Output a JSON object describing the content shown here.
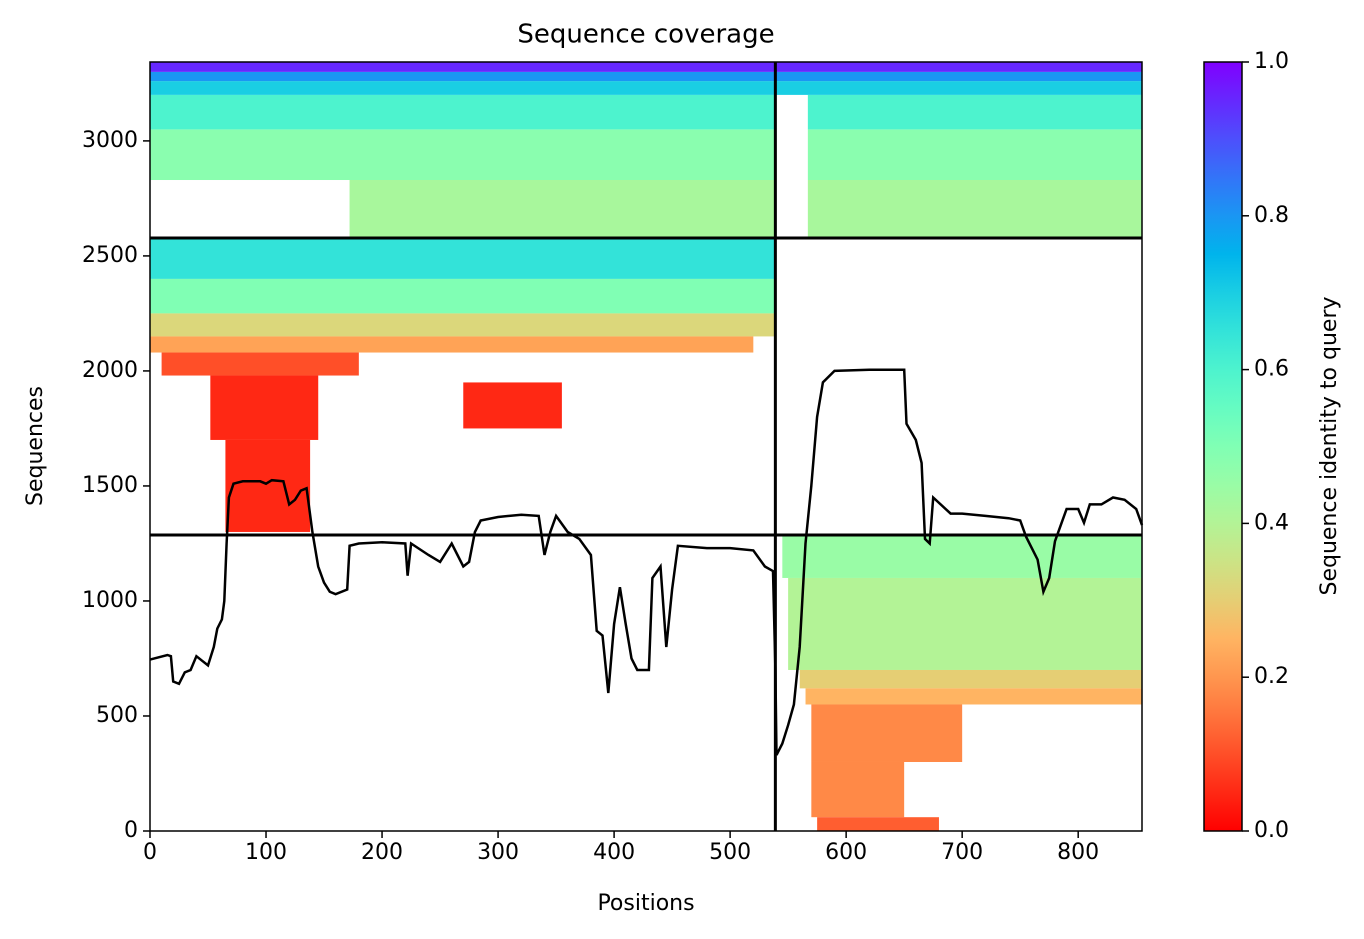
{
  "chart_data": {
    "type": "coverage",
    "title": "Sequence coverage",
    "xlabel": "Positions",
    "ylabel": "Sequences",
    "colorbar_label": "Sequence identity to query",
    "xlim": [
      0,
      855
    ],
    "ylim": [
      0,
      3343
    ],
    "xticks": [
      0,
      100,
      200,
      300,
      400,
      500,
      600,
      700,
      800
    ],
    "yticks": [
      0,
      500,
      1000,
      1500,
      2000,
      2500,
      3000
    ],
    "clim": [
      0,
      1
    ],
    "cticks": [
      {
        "value": 0,
        "label": "0.0"
      },
      {
        "value": 0.2,
        "label": "0.2"
      },
      {
        "value": 0.4,
        "label": "0.4"
      },
      {
        "value": 0.6,
        "label": "0.6"
      },
      {
        "value": 0.8,
        "label": "0.8"
      },
      {
        "value": 1,
        "label": "1.0"
      }
    ],
    "colormap": "rainbow_r",
    "blocks": [
      {
        "x": [
          172,
          539
        ],
        "y": [
          2580,
          2830
        ],
        "identity": 0.42
      },
      {
        "x": [
          0,
          539
        ],
        "y": [
          2830,
          3050
        ],
        "identity": 0.48
      },
      {
        "x": [
          0,
          539
        ],
        "y": [
          3050,
          3200
        ],
        "identity": 0.6
      },
      {
        "x": [
          0,
          539
        ],
        "y": [
          3200,
          3260
        ],
        "identity": 0.7
      },
      {
        "x": [
          0,
          539
        ],
        "y": [
          3260,
          3300
        ],
        "identity": 0.8
      },
      {
        "x": [
          0,
          539
        ],
        "y": [
          3300,
          3343
        ],
        "identity": 0.95
      },
      {
        "x": [
          567,
          855
        ],
        "y": [
          2580,
          2830
        ],
        "identity": 0.42
      },
      {
        "x": [
          567,
          855
        ],
        "y": [
          2830,
          3050
        ],
        "identity": 0.48
      },
      {
        "x": [
          567,
          855
        ],
        "y": [
          3050,
          3200
        ],
        "identity": 0.6
      },
      {
        "x": [
          539,
          855
        ],
        "y": [
          3200,
          3260
        ],
        "identity": 0.7
      },
      {
        "x": [
          539,
          855
        ],
        "y": [
          3260,
          3300
        ],
        "identity": 0.8
      },
      {
        "x": [
          539,
          855
        ],
        "y": [
          3300,
          3343
        ],
        "identity": 0.95
      },
      {
        "x": [
          0,
          539
        ],
        "y": [
          2400,
          2575
        ],
        "identity": 0.65
      },
      {
        "x": [
          0,
          539
        ],
        "y": [
          2250,
          2400
        ],
        "identity": 0.5
      },
      {
        "x": [
          0,
          539
        ],
        "y": [
          2150,
          2250
        ],
        "identity": 0.32
      },
      {
        "x": [
          0,
          520
        ],
        "y": [
          2080,
          2150
        ],
        "identity": 0.22
      },
      {
        "x": [
          10,
          180
        ],
        "y": [
          1980,
          2080
        ],
        "identity": 0.1
      },
      {
        "x": [
          52,
          145
        ],
        "y": [
          1700,
          1980
        ],
        "identity": 0.05
      },
      {
        "x": [
          65,
          138
        ],
        "y": [
          1300,
          1700
        ],
        "identity": 0.05
      },
      {
        "x": [
          270,
          355
        ],
        "y": [
          1750,
          1950
        ],
        "identity": 0.05
      },
      {
        "x": [
          545,
          855
        ],
        "y": [
          1100,
          1285
        ],
        "identity": 0.45
      },
      {
        "x": [
          550,
          855
        ],
        "y": [
          700,
          1100
        ],
        "identity": 0.4
      },
      {
        "x": [
          560,
          855
        ],
        "y": [
          620,
          700
        ],
        "identity": 0.3
      },
      {
        "x": [
          565,
          855
        ],
        "y": [
          550,
          620
        ],
        "identity": 0.25
      },
      {
        "x": [
          570,
          700
        ],
        "y": [
          300,
          550
        ],
        "identity": 0.18
      },
      {
        "x": [
          570,
          650
        ],
        "y": [
          60,
          300
        ],
        "identity": 0.18
      },
      {
        "x": [
          575,
          680
        ],
        "y": [
          0,
          60
        ],
        "identity": 0.12
      }
    ],
    "hlines": [
      1287,
      2578
    ],
    "vlines": [
      539
    ],
    "coverage": {
      "color": "#000000",
      "x": [
        0,
        15,
        18,
        20,
        25,
        30,
        35,
        40,
        45,
        50,
        55,
        58,
        62,
        64,
        66,
        68,
        72,
        80,
        95,
        100,
        105,
        115,
        120,
        125,
        130,
        135,
        140,
        145,
        150,
        155,
        160,
        170,
        172,
        180,
        200,
        220,
        222,
        225,
        240,
        250,
        260,
        265,
        270,
        275,
        280,
        285,
        300,
        320,
        335,
        340,
        345,
        350,
        360,
        370,
        380,
        385,
        390,
        393,
        395,
        400,
        405,
        410,
        415,
        420,
        430,
        433,
        440,
        445,
        450,
        455,
        480,
        500,
        520,
        530,
        537,
        539,
        540,
        545,
        550,
        555,
        560,
        565,
        570,
        575,
        580,
        590,
        620,
        650,
        652,
        660,
        665,
        668,
        672,
        675,
        690,
        700,
        720,
        740,
        750,
        755,
        765,
        770,
        775,
        780,
        785,
        790,
        800,
        805,
        810,
        820,
        830,
        840,
        850,
        855
      ],
      "y": [
        745,
        765,
        760,
        650,
        640,
        690,
        700,
        760,
        740,
        720,
        800,
        880,
        920,
        1000,
        1250,
        1450,
        1510,
        1520,
        1520,
        1510,
        1525,
        1520,
        1420,
        1440,
        1480,
        1490,
        1300,
        1150,
        1080,
        1040,
        1030,
        1050,
        1240,
        1250,
        1255,
        1250,
        1110,
        1250,
        1200,
        1170,
        1250,
        1200,
        1150,
        1170,
        1300,
        1350,
        1365,
        1375,
        1370,
        1200,
        1300,
        1370,
        1300,
        1270,
        1200,
        870,
        850,
        700,
        600,
        900,
        1060,
        900,
        750,
        700,
        700,
        1100,
        1150,
        800,
        1050,
        1240,
        1230,
        1230,
        1220,
        1150,
        1130,
        700,
        330,
        380,
        460,
        550,
        800,
        1250,
        1500,
        1800,
        1950,
        2000,
        2005,
        2005,
        1770,
        1700,
        1600,
        1270,
        1250,
        1450,
        1380,
        1380,
        1370,
        1360,
        1350,
        1280,
        1180,
        1040,
        1100,
        1260,
        1330,
        1400,
        1400,
        1340,
        1420,
        1420,
        1450,
        1440,
        1400,
        1330
      ]
    }
  }
}
